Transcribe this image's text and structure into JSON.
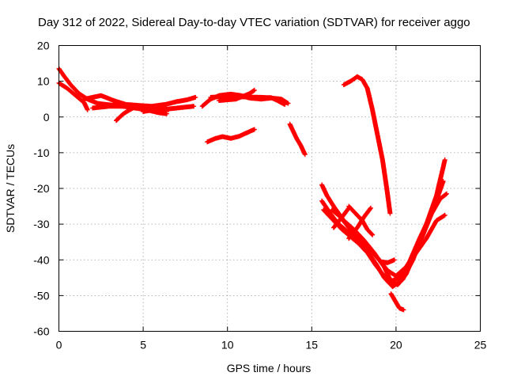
{
  "chart_data": {
    "type": "scatter",
    "title": "Day 312 of 2022, Sidereal Day-to-day VTEC variation (SDTVAR) for receiver aggo",
    "xlabel": "GPS time / hours",
    "ylabel": "SDTVAR / TECUs",
    "xlim": [
      0,
      25
    ],
    "ylim": [
      -60,
      20
    ],
    "xticks": [
      0,
      5,
      10,
      15,
      20,
      25
    ],
    "yticks": [
      -60,
      -50,
      -40,
      -30,
      -20,
      -10,
      0,
      10,
      20
    ],
    "grid": true,
    "marker": "plus",
    "color": "#ff0000",
    "series": [
      {
        "name": "arc-1",
        "points": [
          [
            0.0,
            13.5
          ],
          [
            0.3,
            11.5
          ],
          [
            0.7,
            9.0
          ],
          [
            1.2,
            6.5
          ],
          [
            1.7,
            5.0
          ],
          [
            2.3,
            3.8
          ],
          [
            3.0,
            3.4
          ],
          [
            3.8,
            3.0
          ],
          [
            4.5,
            2.5
          ],
          [
            5.2,
            2.0
          ],
          [
            5.9,
            1.2
          ],
          [
            6.4,
            0.9
          ]
        ]
      },
      {
        "name": "arc-2",
        "points": [
          [
            0.0,
            9.5
          ],
          [
            0.5,
            8.0
          ],
          [
            1.0,
            6.0
          ],
          [
            1.5,
            4.0
          ],
          [
            1.7,
            2.0
          ]
        ]
      },
      {
        "name": "arc-3",
        "points": [
          [
            1.5,
            5.0
          ],
          [
            2.5,
            6.0
          ],
          [
            3.3,
            4.5
          ],
          [
            4.0,
            3.5
          ],
          [
            4.8,
            3.2
          ],
          [
            5.5,
            3.0
          ],
          [
            6.3,
            3.5
          ],
          [
            7.0,
            4.3
          ],
          [
            7.6,
            4.8
          ],
          [
            8.1,
            5.5
          ]
        ]
      },
      {
        "name": "arc-4",
        "points": [
          [
            2.0,
            2.5
          ],
          [
            3.0,
            3.0
          ],
          [
            4.0,
            3.0
          ],
          [
            5.0,
            2.6
          ],
          [
            6.0,
            2.0
          ],
          [
            7.0,
            2.5
          ],
          [
            8.0,
            3.0
          ]
        ]
      },
      {
        "name": "arc-5",
        "points": [
          [
            3.4,
            -1.0
          ],
          [
            3.8,
            0.8
          ],
          [
            4.2,
            2.0
          ],
          [
            4.6,
            3.0
          ]
        ]
      },
      {
        "name": "arc-6",
        "points": [
          [
            5.0,
            1.5
          ],
          [
            5.6,
            2.0
          ],
          [
            6.0,
            3.0
          ],
          [
            6.5,
            2.0
          ]
        ]
      },
      {
        "name": "arc-7",
        "points": [
          [
            8.5,
            3.0
          ],
          [
            9.0,
            5.0
          ],
          [
            9.5,
            6.0
          ],
          [
            10.2,
            6.4
          ],
          [
            10.8,
            6.0
          ],
          [
            11.3,
            5.3
          ],
          [
            12.0,
            5.0
          ],
          [
            12.6,
            5.3
          ],
          [
            13.2,
            5.0
          ],
          [
            13.6,
            3.8
          ]
        ]
      },
      {
        "name": "arc-8",
        "points": [
          [
            9.0,
            5.5
          ],
          [
            10.0,
            5.8
          ],
          [
            11.0,
            5.6
          ],
          [
            12.0,
            5.5
          ],
          [
            12.6,
            5.4
          ],
          [
            13.0,
            4.5
          ],
          [
            13.4,
            3.5
          ]
        ]
      },
      {
        "name": "arc-9",
        "points": [
          [
            9.5,
            4.6
          ],
          [
            10.5,
            5.0
          ],
          [
            11.3,
            6.5
          ],
          [
            11.6,
            7.5
          ]
        ]
      },
      {
        "name": "arc-10",
        "points": [
          [
            8.8,
            -7.0
          ],
          [
            9.3,
            -6.0
          ],
          [
            9.7,
            -5.5
          ],
          [
            10.2,
            -6.0
          ],
          [
            10.7,
            -5.4
          ],
          [
            11.2,
            -4.3
          ],
          [
            11.6,
            -3.5
          ]
        ]
      },
      {
        "name": "arc-11",
        "points": [
          [
            13.7,
            -2.0
          ],
          [
            13.9,
            -4.0
          ],
          [
            14.1,
            -6.0
          ],
          [
            14.35,
            -8.0
          ],
          [
            14.6,
            -10.5
          ]
        ]
      },
      {
        "name": "arc-12",
        "points": [
          [
            16.9,
            9.0
          ],
          [
            17.3,
            10.0
          ],
          [
            17.7,
            11.3
          ],
          [
            18.0,
            10.5
          ],
          [
            18.3,
            8.0
          ],
          [
            18.6,
            2.0
          ],
          [
            18.9,
            -5.0
          ],
          [
            19.2,
            -12.0
          ],
          [
            19.45,
            -20.0
          ],
          [
            19.65,
            -27.0
          ]
        ]
      },
      {
        "name": "arc-13",
        "points": [
          [
            15.6,
            -19.0
          ],
          [
            15.9,
            -22.0
          ],
          [
            16.3,
            -25.0
          ],
          [
            16.9,
            -29.0
          ],
          [
            17.5,
            -31.5
          ],
          [
            18.1,
            -34.5
          ],
          [
            18.7,
            -38.0
          ],
          [
            19.3,
            -42.0
          ],
          [
            19.7,
            -46.0
          ],
          [
            20.1,
            -47.0
          ],
          [
            20.6,
            -44.0
          ],
          [
            21.2,
            -37.0
          ],
          [
            21.8,
            -30.0
          ],
          [
            22.4,
            -22.0
          ],
          [
            22.9,
            -12.0
          ]
        ]
      },
      {
        "name": "arc-14",
        "points": [
          [
            15.6,
            -23.5
          ],
          [
            16.1,
            -27.0
          ],
          [
            16.6,
            -30.0
          ],
          [
            17.1,
            -32.0
          ],
          [
            17.6,
            -34.0
          ],
          [
            18.2,
            -37.0
          ],
          [
            18.8,
            -41.0
          ],
          [
            19.3,
            -45.0
          ],
          [
            19.8,
            -47.5
          ],
          [
            20.4,
            -45.5
          ],
          [
            21.0,
            -40.0
          ],
          [
            21.6,
            -33.0
          ],
          [
            22.2,
            -26.0
          ],
          [
            22.8,
            -18.0
          ]
        ]
      },
      {
        "name": "arc-15",
        "points": [
          [
            15.7,
            -26.0
          ],
          [
            16.3,
            -29.0
          ],
          [
            16.8,
            -31.5
          ],
          [
            17.3,
            -33.5
          ],
          [
            17.8,
            -35.5
          ],
          [
            18.3,
            -38.0
          ],
          [
            18.8,
            -41.5
          ],
          [
            19.2,
            -44.0
          ],
          [
            19.7,
            -46.0
          ],
          [
            20.2,
            -45.0
          ],
          [
            20.8,
            -40.5
          ],
          [
            21.4,
            -34.0
          ],
          [
            22.0,
            -28.0
          ],
          [
            22.6,
            -23.0
          ],
          [
            23.0,
            -21.5
          ]
        ]
      },
      {
        "name": "arc-16",
        "points": [
          [
            16.2,
            -26.0
          ],
          [
            16.7,
            -28.0
          ],
          [
            17.2,
            -31.0
          ],
          [
            17.8,
            -34.0
          ],
          [
            18.4,
            -37.0
          ],
          [
            19.0,
            -40.0
          ],
          [
            19.5,
            -43.0
          ],
          [
            20.0,
            -44.5
          ],
          [
            20.6,
            -42.0
          ],
          [
            21.2,
            -38.0
          ],
          [
            21.8,
            -34.0
          ],
          [
            22.4,
            -29.0
          ],
          [
            22.9,
            -27.5
          ]
        ]
      },
      {
        "name": "arc-17",
        "points": [
          [
            16.3,
            -31.0
          ],
          [
            16.8,
            -28.0
          ],
          [
            17.2,
            -25.5
          ]
        ]
      },
      {
        "name": "arc-18",
        "points": [
          [
            17.2,
            -34.0
          ],
          [
            17.7,
            -31.0
          ],
          [
            18.1,
            -28.0
          ],
          [
            18.5,
            -25.5
          ]
        ]
      },
      {
        "name": "arc-19",
        "points": [
          [
            17.2,
            -25.0
          ],
          [
            17.6,
            -27.0
          ],
          [
            18.0,
            -29.0
          ],
          [
            18.3,
            -31.5
          ],
          [
            18.6,
            -33.0
          ]
        ]
      },
      {
        "name": "arc-20",
        "points": [
          [
            19.1,
            -40.5
          ],
          [
            19.5,
            -40.8
          ],
          [
            19.9,
            -40.0
          ]
        ]
      },
      {
        "name": "arc-21",
        "points": [
          [
            19.7,
            -49.5
          ],
          [
            19.95,
            -51.5
          ],
          [
            20.2,
            -53.5
          ],
          [
            20.45,
            -54.0
          ]
        ]
      }
    ]
  }
}
